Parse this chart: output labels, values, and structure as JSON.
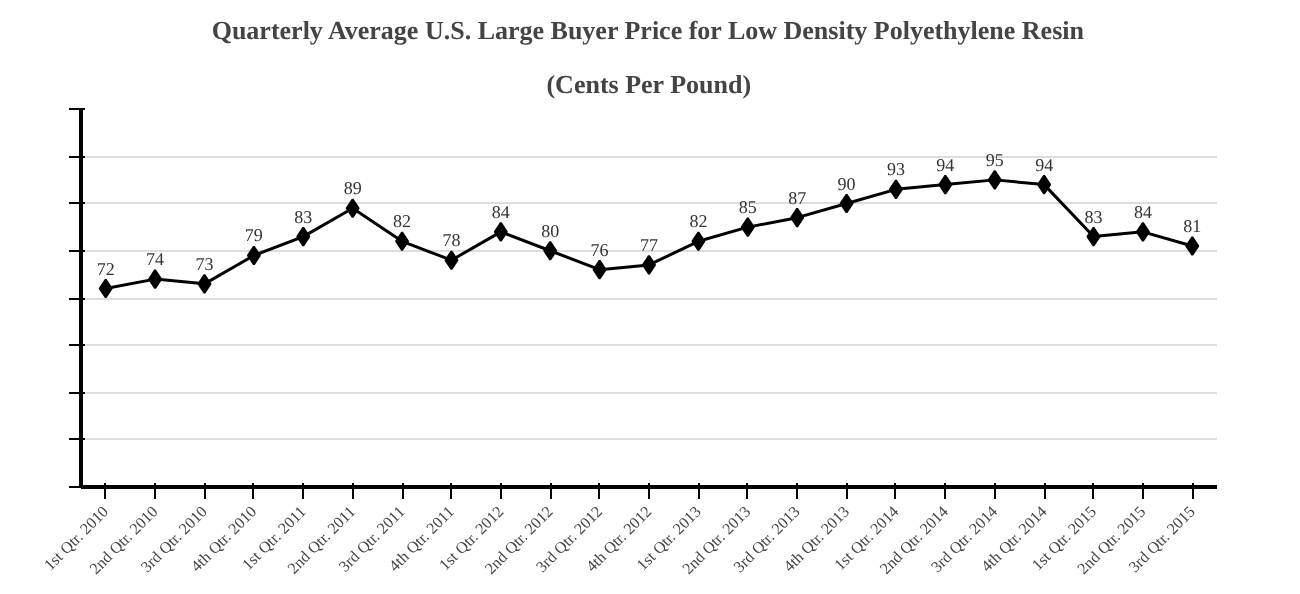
{
  "chart_data": {
    "type": "line",
    "title": "Quarterly Average U.S. Large Buyer Price for Low Density Polyethylene Resin",
    "subtitle": "(Cents Per Pound)",
    "categories": [
      "1st Qtr. 2010",
      "2nd Qtr. 2010",
      "3rd Qtr. 2010",
      "4th Qtr. 2010",
      "1st Qtr. 2011",
      "2nd Qtr. 2011",
      "3rd Qtr. 2011",
      "4th Qtr. 2011",
      "1st Qtr. 2012",
      "2nd Qtr. 2012",
      "3rd Qtr. 2012",
      "4th Qtr. 2012",
      "1st Qtr. 2013",
      "2nd Qtr. 2013",
      "3rd Qtr. 2013",
      "4th Qtr. 2013",
      "1st Qtr. 2014",
      "2nd Qtr. 2014",
      "3rd Qtr. 2014",
      "4th Qtr. 2014",
      "1st Qtr. 2015",
      "2nd Qtr. 2015",
      "3rd Qtr. 2015"
    ],
    "series": [
      {
        "color": "#000000",
        "values": [
          72,
          74,
          73,
          79,
          83,
          89,
          82,
          78,
          84,
          80,
          76,
          77,
          82,
          85,
          87,
          90,
          93,
          94,
          95,
          94,
          83,
          84,
          81
        ]
      }
    ],
    "ylim": [
      30,
      110
    ],
    "yticks": [
      {
        "value": 30,
        "label": null
      },
      {
        "value": 40,
        "label": null
      },
      {
        "value": 50,
        "label": null
      },
      {
        "value": 60,
        "label": null
      },
      {
        "value": 70,
        "label": null
      },
      {
        "value": 80,
        "label": null
      },
      {
        "value": 90,
        "label": null
      },
      {
        "value": 100,
        "label": null
      },
      {
        "value": 110,
        "label": null
      }
    ],
    "grid": "y",
    "marker": "diamond",
    "line_style": "solid",
    "data_labels": true
  }
}
